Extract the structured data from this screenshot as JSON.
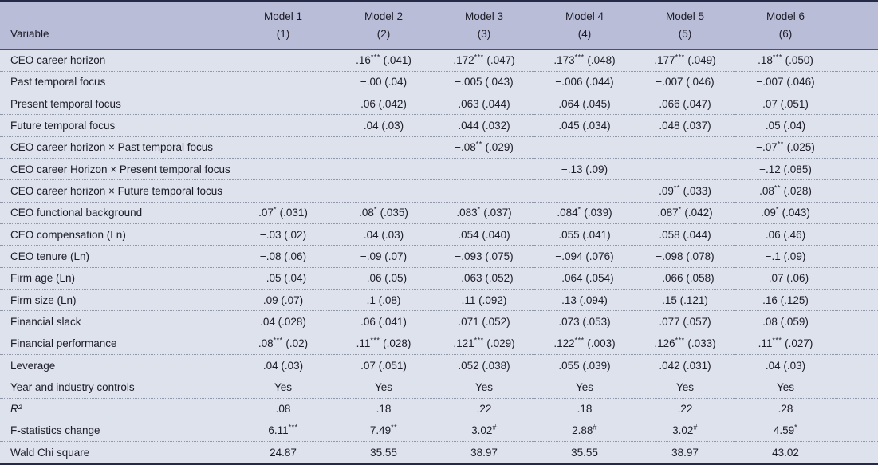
{
  "table": {
    "colors": {
      "header_bg": "#b9bdd8",
      "row_bg": "#dde2ed",
      "border_dark": "#252b47",
      "header_line": "#4b5064",
      "dotted_separator": "#9096aa",
      "text": "#1c1c26"
    },
    "header": {
      "variable_label": "Variable",
      "columns": [
        {
          "title": "Model 1",
          "number": "(1)"
        },
        {
          "title": "Model 2",
          "number": "(2)"
        },
        {
          "title": "Model 3",
          "number": "(3)"
        },
        {
          "title": "Model 4",
          "number": "(4)"
        },
        {
          "title": "Model 5",
          "number": "(5)"
        },
        {
          "title": "Model 6",
          "number": "(6)"
        }
      ]
    },
    "rows": [
      {
        "label": "CEO career horizon",
        "values": [
          "",
          ".16*** (.041)",
          ".172*** (.047)",
          ".173*** (.048)",
          ".177*** (.049)",
          ".18*** (.050)"
        ]
      },
      {
        "label": "Past temporal focus",
        "values": [
          "",
          "−.00 (.04)",
          "−.005 (.043)",
          "−.006 (.044)",
          "−.007 (.046)",
          "−.007 (.046)"
        ]
      },
      {
        "label": "Present temporal focus",
        "values": [
          "",
          ".06 (.042)",
          ".063 (.044)",
          ".064 (.045)",
          ".066 (.047)",
          ".07 (.051)"
        ]
      },
      {
        "label": "Future temporal focus",
        "values": [
          "",
          ".04 (.03)",
          ".044 (.032)",
          ".045 (.034)",
          ".048 (.037)",
          ".05 (.04)"
        ]
      },
      {
        "label": "CEO career horizon × Past temporal focus",
        "values": [
          "",
          "",
          "−.08** (.029)",
          "",
          "",
          "−.07** (.025)"
        ]
      },
      {
        "label": "CEO career Horizon × Present temporal focus",
        "values": [
          "",
          "",
          "",
          "−.13 (.09)",
          "",
          "−.12 (.085)"
        ]
      },
      {
        "label": "CEO career horizon × Future temporal focus",
        "values": [
          "",
          "",
          "",
          "",
          ".09** (.033)",
          ".08** (.028)"
        ]
      },
      {
        "label": "CEO functional background",
        "values": [
          ".07* (.031)",
          ".08* (.035)",
          ".083* (.037)",
          ".084* (.039)",
          ".087* (.042)",
          ".09* (.043)"
        ]
      },
      {
        "label": "CEO compensation (Ln)",
        "values": [
          "−.03 (.02)",
          ".04 (.03)",
          ".054 (.040)",
          ".055 (.041)",
          ".058 (.044)",
          ".06 (.46)"
        ]
      },
      {
        "label": "CEO tenure (Ln)",
        "values": [
          "−.08 (.06)",
          "−.09 (.07)",
          "−.093 (.075)",
          "−.094 (.076)",
          "−.098 (.078)",
          "−.1 (.09)"
        ]
      },
      {
        "label": "Firm age (Ln)",
        "values": [
          "−.05 (.04)",
          "−.06 (.05)",
          "−.063 (.052)",
          "−.064 (.054)",
          "−.066 (.058)",
          "−.07 (.06)"
        ]
      },
      {
        "label": "Firm size (Ln)",
        "values": [
          ".09 (.07)",
          ".1 (.08)",
          ".11 (.092)",
          ".13 (.094)",
          ".15 (.121)",
          ".16 (.125)"
        ]
      },
      {
        "label": "Financial slack",
        "values": [
          ".04 (.028)",
          ".06 (.041)",
          ".071 (.052)",
          ".073 (.053)",
          ".077 (.057)",
          ".08 (.059)"
        ]
      },
      {
        "label": "Financial performance",
        "values": [
          ".08*** (.02)",
          ".11*** (.028)",
          ".121*** (.029)",
          ".122*** (.003)",
          ".126*** (.033)",
          ".11*** (.027)"
        ]
      },
      {
        "label": "Leverage",
        "values": [
          ".04 (.03)",
          ".07 (.051)",
          ".052 (.038)",
          ".055 (.039)",
          ".042 (.031)",
          ".04 (.03)"
        ]
      },
      {
        "label": "Year and industry controls",
        "values": [
          "Yes",
          "Yes",
          "Yes",
          "Yes",
          "Yes",
          "Yes"
        ]
      },
      {
        "label": "R²",
        "italic_label": true,
        "values": [
          ".08",
          ".18",
          ".22",
          ".18",
          ".22",
          ".28"
        ]
      },
      {
        "label": "F-statistics change",
        "values": [
          "6.11***",
          "7.49**",
          "3.02#",
          "2.88#",
          "3.02#",
          "4.59*"
        ]
      },
      {
        "label": "Wald Chi square",
        "values": [
          "24.87",
          "35.55",
          "38.97",
          "35.55",
          "38.97",
          "43.02"
        ]
      }
    ]
  }
}
